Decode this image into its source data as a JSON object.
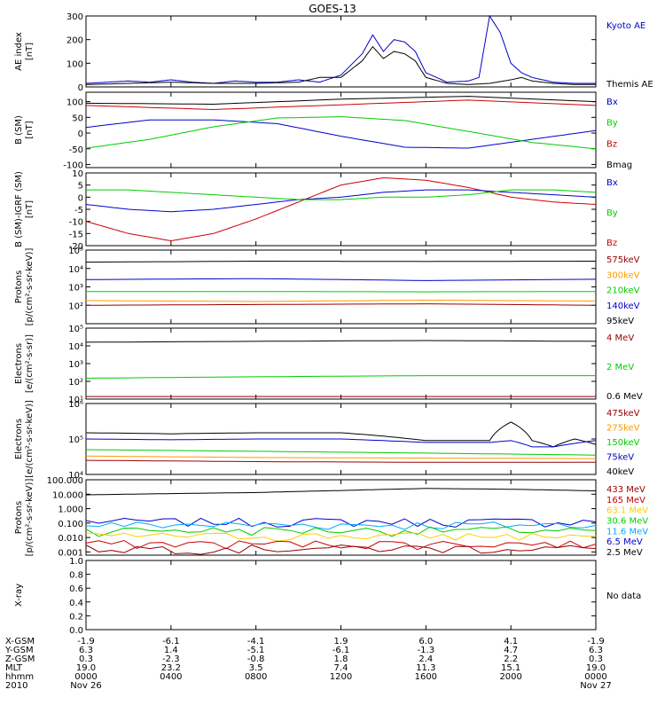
{
  "title": "GOES-13",
  "chart_data": [
    {
      "type": "line",
      "panel": "ae-index",
      "ylabel": [
        "AE index",
        "[nT]"
      ],
      "ylim": [
        0,
        300
      ],
      "yticks": [
        "0",
        "100",
        "200",
        "300"
      ],
      "legend": [
        {
          "label": "Kyoto AE",
          "color": "#0000cc"
        },
        {
          "label": "Themis AE",
          "color": "#000000"
        }
      ],
      "series": [
        {
          "name": "Kyoto AE",
          "color": "#0000cc",
          "x": [
            0,
            1,
            2,
            3,
            4,
            5,
            6,
            7,
            8,
            9,
            10,
            11,
            12,
            13,
            13.5,
            14,
            14.5,
            15,
            15.5,
            16,
            17,
            18,
            18.5,
            19,
            19.5,
            20,
            20.5,
            21,
            22,
            23,
            24
          ],
          "y": [
            15,
            20,
            25,
            20,
            30,
            20,
            15,
            25,
            20,
            20,
            30,
            20,
            50,
            140,
            220,
            150,
            200,
            190,
            150,
            60,
            20,
            25,
            40,
            300,
            230,
            100,
            60,
            40,
            20,
            15,
            15
          ]
        },
        {
          "name": "Themis AE",
          "color": "#000000",
          "x": [
            0,
            2,
            4,
            6,
            8,
            10,
            11,
            12,
            13,
            13.5,
            14,
            14.5,
            15,
            15.5,
            16,
            17,
            18,
            19,
            20,
            20.5,
            21,
            22,
            23,
            24
          ],
          "y": [
            10,
            15,
            20,
            15,
            15,
            20,
            40,
            40,
            110,
            170,
            120,
            150,
            140,
            110,
            40,
            15,
            10,
            15,
            30,
            40,
            25,
            15,
            10,
            10
          ]
        }
      ]
    },
    {
      "type": "line",
      "panel": "b-sm",
      "ylabel": [
        "B (SM)",
        "[nT]"
      ],
      "ylim": [
        -110,
        130
      ],
      "yticks": [
        "-100",
        "-50",
        "0",
        "50",
        "100"
      ],
      "ytick_values": [
        -100,
        -50,
        0,
        50,
        100
      ],
      "legend": [
        {
          "label": "Bx",
          "color": "#0000cc"
        },
        {
          "label": "By",
          "color": "#00cc00"
        },
        {
          "label": "Bz",
          "color": "#cc0000"
        },
        {
          "label": "Bmag",
          "color": "#000000"
        }
      ],
      "series": [
        {
          "name": "Bmag",
          "color": "#000000",
          "x": [
            0,
            6,
            12,
            18,
            24
          ],
          "y": [
            95,
            92,
            108,
            117,
            100
          ]
        },
        {
          "name": "Bz",
          "color": "#cc0000",
          "x": [
            0,
            6,
            12,
            18,
            24
          ],
          "y": [
            88,
            75,
            90,
            105,
            88
          ]
        },
        {
          "name": "Bx",
          "color": "#0000cc",
          "x": [
            0,
            3,
            6,
            9,
            12,
            15,
            18,
            21,
            24
          ],
          "y": [
            18,
            42,
            42,
            30,
            -10,
            -45,
            -48,
            -20,
            8
          ]
        },
        {
          "name": "By",
          "color": "#00cc00",
          "x": [
            0,
            3,
            6,
            9,
            12,
            15,
            18,
            21,
            24
          ],
          "y": [
            -48,
            -20,
            20,
            48,
            52,
            40,
            5,
            -30,
            -50
          ]
        }
      ]
    },
    {
      "type": "line",
      "panel": "b-igrf",
      "ylabel": [
        "B (SM)-IGRF (SM)",
        "[nT]"
      ],
      "ylim": [
        -20,
        10
      ],
      "yticks": [
        "-20",
        "-15",
        "-10",
        "-5",
        "0",
        "5",
        "10"
      ],
      "ytick_values": [
        -20,
        -15,
        -10,
        -5,
        0,
        5,
        10
      ],
      "legend": [
        {
          "label": "Bx",
          "color": "#0000cc"
        },
        {
          "label": "By",
          "color": "#00cc00"
        },
        {
          "label": "Bz",
          "color": "#cc0000"
        }
      ],
      "series": [
        {
          "name": "Bz",
          "color": "#cc0000",
          "x": [
            0,
            2,
            4,
            6,
            8,
            10,
            12,
            14,
            16,
            18,
            20,
            22,
            24
          ],
          "y": [
            -10,
            -15,
            -18,
            -15,
            -9,
            -2,
            5,
            8,
            7,
            4,
            0,
            -2,
            -3
          ]
        },
        {
          "name": "Bx",
          "color": "#0000cc",
          "x": [
            0,
            2,
            4,
            6,
            8,
            10,
            12,
            14,
            16,
            18,
            20,
            22,
            24
          ],
          "y": [
            -3,
            -5,
            -6,
            -5,
            -3,
            -1,
            0,
            2,
            3,
            3,
            2,
            1,
            0
          ]
        },
        {
          "name": "By",
          "color": "#00cc00",
          "x": [
            0,
            2,
            4,
            6,
            8,
            10,
            12,
            14,
            16,
            18,
            20,
            22,
            24
          ],
          "y": [
            3,
            3,
            2,
            1,
            0,
            -1,
            -1,
            0,
            0,
            1,
            3,
            3,
            2
          ]
        }
      ]
    },
    {
      "type": "line",
      "panel": "protons-low",
      "scale": "log",
      "ylabel": [
        "Protons",
        "[p/(cm²-s-sr-keV)]"
      ],
      "ylim": [
        10,
        100000
      ],
      "yticks": [
        "10²",
        "10³",
        "10⁴",
        "10⁵"
      ],
      "ytick_values": [
        100,
        1000,
        10000,
        100000
      ],
      "legend": [
        {
          "label": "575keV",
          "color": "#990000"
        },
        {
          "label": "300keV",
          "color": "#ff9900"
        },
        {
          "label": "210keV",
          "color": "#00cc00"
        },
        {
          "label": "140keV",
          "color": "#0000cc"
        },
        {
          "label": "95keV",
          "color": "#000000"
        }
      ],
      "series": [
        {
          "name": "95keV",
          "color": "#000000",
          "x": [
            0,
            8,
            16,
            24
          ],
          "y": [
            22000,
            25000,
            24000,
            25000
          ]
        },
        {
          "name": "140keV",
          "color": "#0000cc",
          "x": [
            0,
            8,
            16,
            24
          ],
          "y": [
            2500,
            2800,
            2200,
            2600
          ]
        },
        {
          "name": "210keV",
          "color": "#00cc00",
          "x": [
            0,
            8,
            16,
            24
          ],
          "y": [
            560,
            560,
            540,
            560
          ]
        },
        {
          "name": "300keV",
          "color": "#ff9900",
          "x": [
            0,
            8,
            16,
            24
          ],
          "y": [
            180,
            160,
            190,
            170
          ]
        },
        {
          "name": "575keV",
          "color": "#990000",
          "x": [
            0,
            8,
            16,
            24
          ],
          "y": [
            100,
            110,
            120,
            100
          ]
        }
      ]
    },
    {
      "type": "line",
      "panel": "electrons-high",
      "scale": "log",
      "ylabel": [
        "Electrons",
        "[e/(cm²-s-sr)]"
      ],
      "ylim": [
        10,
        100000
      ],
      "yticks": [
        "10¹",
        "10²",
        "10³",
        "10⁴",
        "10⁵"
      ],
      "ytick_values": [
        10,
        100,
        1000,
        10000,
        100000
      ],
      "legend": [
        {
          "label": "4 MeV",
          "color": "#990000"
        },
        {
          "label": "2 MeV",
          "color": "#00cc00"
        },
        {
          "label": "0.6 MeV",
          "color": "#000000"
        }
      ],
      "series": [
        {
          "name": "0.6 MeV",
          "color": "#000000",
          "x": [
            0,
            8,
            16,
            24
          ],
          "y": [
            16000,
            18000,
            20000,
            18000
          ]
        },
        {
          "name": "2 MeV",
          "color": "#00cc00",
          "x": [
            0,
            8,
            16,
            24
          ],
          "y": [
            150,
            180,
            210,
            210
          ]
        },
        {
          "name": "4 MeV",
          "color": "#990000",
          "x": [
            0,
            8,
            16,
            24
          ],
          "y": [
            14,
            14,
            14,
            14
          ]
        }
      ]
    },
    {
      "type": "line",
      "panel": "electrons-low",
      "scale": "log",
      "ylabel": [
        "Electrons",
        "[e/(cm²-s-sr-keV)]"
      ],
      "ylim": [
        10000,
        1000000
      ],
      "yticks": [
        "10⁴",
        "10⁵",
        "10⁶"
      ],
      "ytick_values": [
        10000,
        100000,
        1000000
      ],
      "legend": [
        {
          "label": "475keV",
          "color": "#990000"
        },
        {
          "label": "275keV",
          "color": "#ff9900"
        },
        {
          "label": "150keV",
          "color": "#00cc00"
        },
        {
          "label": "75keV",
          "color": "#0000cc"
        },
        {
          "label": "40keV",
          "color": "#000000"
        }
      ],
      "series": [
        {
          "name": "40keV",
          "color": "#000000",
          "x": [
            0,
            4,
            8,
            12,
            16,
            19,
            20,
            21,
            22,
            23,
            24
          ],
          "y": [
            150000,
            140000,
            150000,
            150000,
            90000,
            90000,
            300000,
            90000,
            60000,
            100000,
            70000
          ]
        },
        {
          "name": "75keV",
          "color": "#0000cc",
          "x": [
            0,
            4,
            8,
            12,
            16,
            19,
            20,
            21,
            22,
            24
          ],
          "y": [
            100000,
            95000,
            100000,
            100000,
            80000,
            80000,
            90000,
            60000,
            60000,
            90000
          ]
        },
        {
          "name": "150keV",
          "color": "#00cc00",
          "x": [
            0,
            8,
            16,
            24
          ],
          "y": [
            50000,
            45000,
            40000,
            35000
          ]
        },
        {
          "name": "275keV",
          "color": "#ff9900",
          "x": [
            0,
            8,
            16,
            24
          ],
          "y": [
            33000,
            30000,
            29000,
            28000
          ]
        },
        {
          "name": "475keV",
          "color": "#990000",
          "x": [
            0,
            8,
            16,
            24
          ],
          "y": [
            25000,
            23000,
            22000,
            22000
          ]
        }
      ]
    },
    {
      "type": "line",
      "panel": "protons-high",
      "scale": "log",
      "ylabel": [
        "Protons",
        "[p/(cm²-s-sr-keV)]"
      ],
      "ylim": [
        0.0006,
        100
      ],
      "yticks": [
        "0.001",
        "0.010",
        "0.100",
        "1.000",
        "10.000",
        "100.000"
      ],
      "ytick_values": [
        0.001,
        0.01,
        0.1,
        1,
        10,
        100
      ],
      "legend": [
        {
          "label": "433 MeV",
          "color": "#990000"
        },
        {
          "label": "165 MeV",
          "color": "#cc0000"
        },
        {
          "label": "63.1 MeV",
          "color": "#ffcc00"
        },
        {
          "label": "30.6 MeV",
          "color": "#00cc00"
        },
        {
          "label": "11.6 MeV",
          "color": "#00aaff"
        },
        {
          "label": "6.5 MeV",
          "color": "#0000cc"
        },
        {
          "label": "2.5 MeV",
          "color": "#000000"
        }
      ],
      "series": [
        {
          "name": "2.5 MeV",
          "color": "#000000",
          "x": [
            0,
            4,
            8,
            12,
            16,
            20,
            24
          ],
          "y": [
            9,
            11,
            13,
            18,
            25,
            22,
            17
          ]
        },
        {
          "name": "6.5 MeV",
          "color": "#0000cc",
          "x": [
            0,
            24
          ],
          "y": [
            0.12,
            0.12
          ]
        },
        {
          "name": "11.6 MeV",
          "color": "#00aaff",
          "x": [
            0,
            24
          ],
          "y": [
            0.07,
            0.07
          ]
        },
        {
          "name": "30.6 MeV",
          "color": "#00cc00",
          "x": [
            0,
            24
          ],
          "y": [
            0.03,
            0.03
          ]
        },
        {
          "name": "63.1 MeV",
          "color": "#ffcc00",
          "x": [
            0,
            24
          ],
          "y": [
            0.012,
            0.012
          ]
        },
        {
          "name": "165 MeV",
          "color": "#cc0000",
          "x": [
            0,
            24
          ],
          "y": [
            0.0035,
            0.0035
          ]
        },
        {
          "name": "433 MeV",
          "color": "#990000",
          "x": [
            0,
            24
          ],
          "y": [
            0.0017,
            0.0017
          ]
        }
      ]
    },
    {
      "type": "line",
      "panel": "x-ray",
      "ylabel": [
        "X-ray",
        ""
      ],
      "ylim": [
        0,
        1
      ],
      "yticks": [
        "0.0",
        "0.2",
        "0.4",
        "0.6",
        "0.8",
        "1.0"
      ],
      "ytick_values": [
        0,
        0.2,
        0.4,
        0.6,
        0.8,
        1.0
      ],
      "legend": [],
      "note": "No data",
      "series": []
    }
  ],
  "x_axis": {
    "xlim": [
      0,
      24
    ],
    "tick_hours": [
      0,
      4,
      8,
      12,
      16,
      20,
      24
    ],
    "rows": [
      {
        "label": "X-GSM",
        "values": [
          "-1.9",
          "-6.1",
          "-4.1",
          "1.9",
          "6.0",
          "4.1",
          "-1.9"
        ]
      },
      {
        "label": "Y-GSM",
        "values": [
          "6.3",
          "1.4",
          "-5.1",
          "-6.1",
          "-1.3",
          "4.7",
          "6.3"
        ]
      },
      {
        "label": "Z-GSM",
        "values": [
          "0.3",
          "-2.3",
          "-0.8",
          "1.8",
          "2.4",
          "2.2",
          "0.3"
        ]
      },
      {
        "label": "MLT",
        "values": [
          "19.0",
          "23.2",
          "3.5",
          "7.4",
          "11.3",
          "15.1",
          "19.0"
        ]
      },
      {
        "label": "hhmm",
        "values": [
          "0000",
          "0400",
          "0800",
          "1200",
          "1600",
          "2000",
          "0000"
        ]
      },
      {
        "label": "2010",
        "values": [
          "Nov 26",
          "",
          "",
          "",
          "",
          "",
          "Nov 27"
        ]
      }
    ]
  }
}
